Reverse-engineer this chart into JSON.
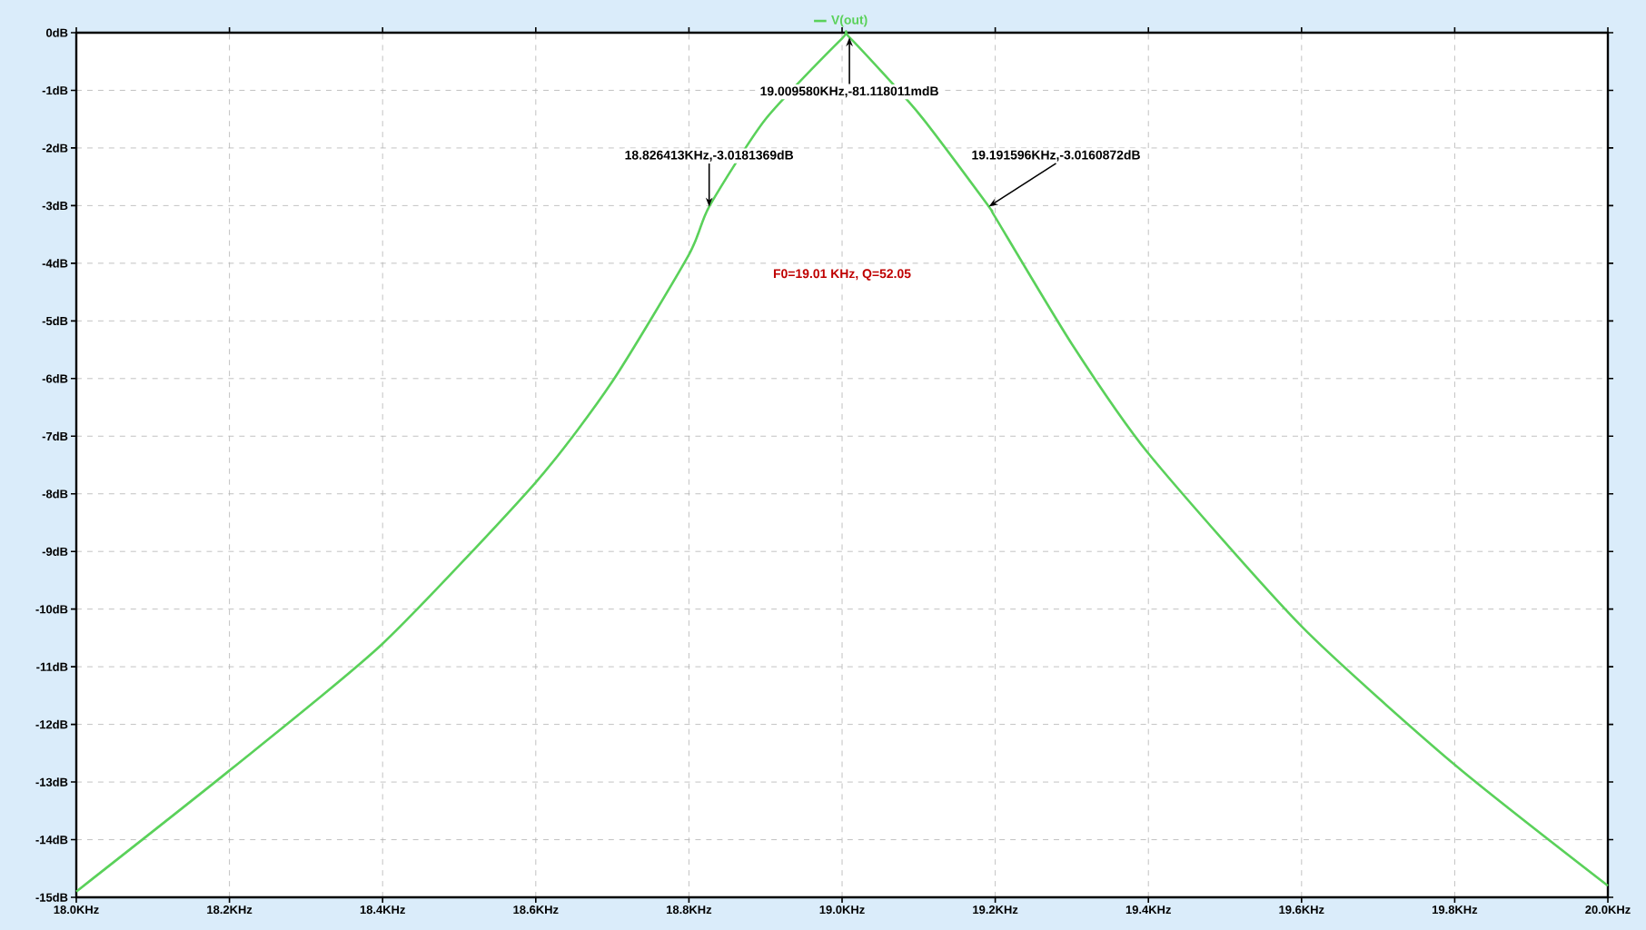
{
  "chart_data": {
    "type": "line",
    "x": [
      18.0,
      18.2,
      18.4,
      18.6,
      18.7,
      18.8,
      18.826413,
      18.9,
      19.0,
      19.00958,
      19.1,
      19.191596,
      19.2,
      19.3,
      19.4,
      19.6,
      19.8,
      20.0
    ],
    "series": [
      {
        "name": "V(out)",
        "color": "#5ad15a",
        "values": [
          -14.9,
          -12.8,
          -10.6,
          -7.8,
          -6.05,
          -3.85,
          -3.0181369,
          -1.5,
          -0.1,
          -0.081118011,
          -1.4,
          -3.0160872,
          -3.2,
          -5.4,
          -7.3,
          -10.3,
          -12.7,
          -14.8
        ]
      }
    ],
    "xlim": [
      18.0,
      20.0
    ],
    "xticks": [
      {
        "value": 18.0,
        "label": "18.0KHz"
      },
      {
        "value": 18.2,
        "label": "18.2KHz"
      },
      {
        "value": 18.4,
        "label": "18.4KHz"
      },
      {
        "value": 18.6,
        "label": "18.6KHz"
      },
      {
        "value": 18.8,
        "label": "18.8KHz"
      },
      {
        "value": 19.0,
        "label": "19.0KHz"
      },
      {
        "value": 19.2,
        "label": "19.2KHz"
      },
      {
        "value": 19.4,
        "label": "19.4KHz"
      },
      {
        "value": 19.6,
        "label": "19.6KHz"
      },
      {
        "value": 19.8,
        "label": "19.8KHz"
      },
      {
        "value": 20.0,
        "label": "20.0KHz"
      }
    ],
    "ylim": [
      -15,
      0
    ],
    "yticks": [
      {
        "value": 0,
        "label": "0dB"
      },
      {
        "value": -1,
        "label": "-1dB"
      },
      {
        "value": -2,
        "label": "-2dB"
      },
      {
        "value": -3,
        "label": "-3dB"
      },
      {
        "value": -4,
        "label": "-4dB"
      },
      {
        "value": -5,
        "label": "-5dB"
      },
      {
        "value": -6,
        "label": "-6dB"
      },
      {
        "value": -7,
        "label": "-7dB"
      },
      {
        "value": -8,
        "label": "-8dB"
      },
      {
        "value": -9,
        "label": "-9dB"
      },
      {
        "value": -10,
        "label": "-10dB"
      },
      {
        "value": -11,
        "label": "-11dB"
      },
      {
        "value": -12,
        "label": "-12dB"
      },
      {
        "value": -13,
        "label": "-13dB"
      },
      {
        "value": -14,
        "label": "-14dB"
      },
      {
        "value": -15,
        "label": "-15dB"
      }
    ],
    "grid": true,
    "legend": "top",
    "annotations": [
      {
        "text": "19.009580KHz,-81.118011mdB",
        "x": 19.00958,
        "y": -0.081118011
      },
      {
        "text": "18.826413KHz,-3.0181369dB",
        "x": 18.826413,
        "y": -3.0181369
      },
      {
        "text": "19.191596KHz,-3.0160872dB",
        "x": 19.191596,
        "y": -3.0160872
      },
      "F0=19.01 KHz, Q=52.05"
    ]
  }
}
